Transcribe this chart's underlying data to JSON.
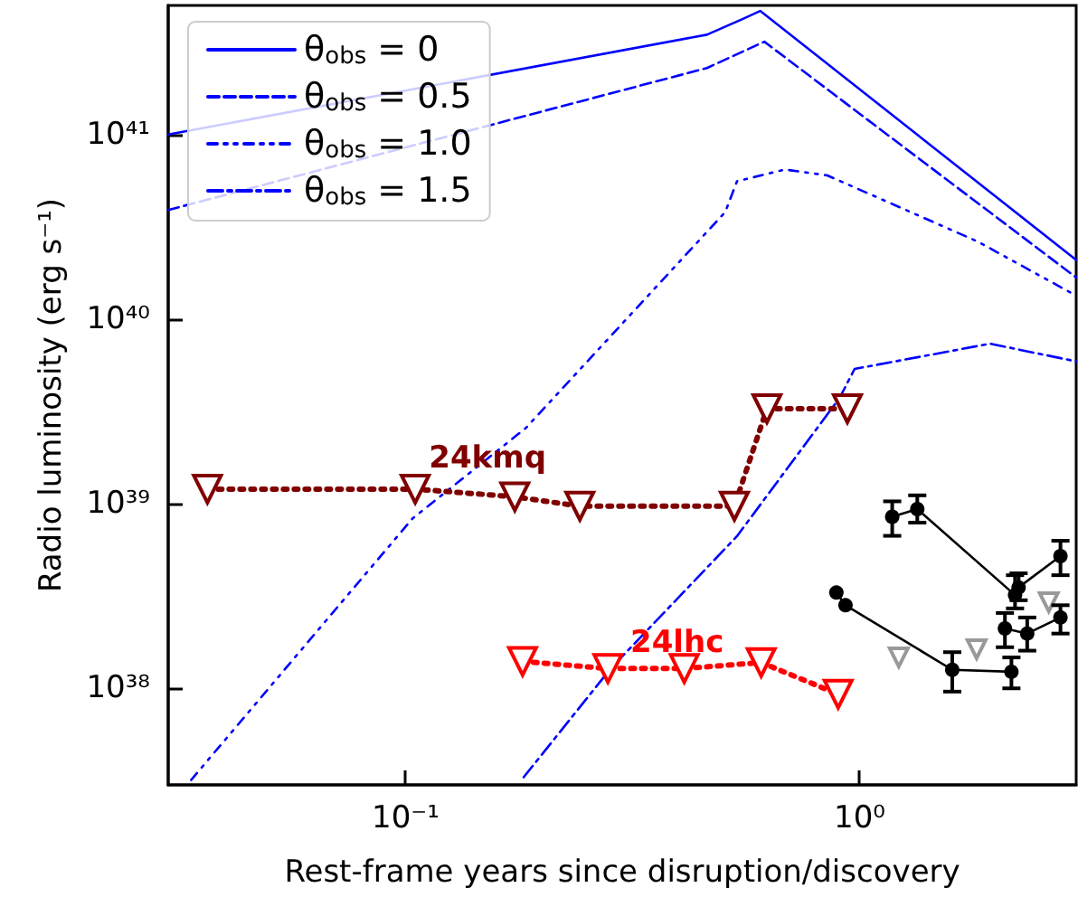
{
  "chart_data": {
    "type": "line",
    "xlabel": "Rest-frame years since disruption/discovery",
    "ylabel": "Radio luminosity (erg s⁻¹)",
    "log": "xy",
    "grid": false,
    "legend": "top left",
    "xlim": [
      0.03,
      3.0
    ],
    "ylim": [
      3e+37,
      5e+41
    ],
    "xticks": [
      {
        "value": 0.1,
        "label": "10⁻¹"
      },
      {
        "value": 1,
        "label": "10⁰"
      }
    ],
    "yticks": [
      {
        "value": 1e+38,
        "label": "10³⁸"
      },
      {
        "value": 1e+39,
        "label": "10³⁹"
      },
      {
        "value": 1e+40,
        "label": "10⁴⁰"
      },
      {
        "value": 1e+41,
        "label": "10⁴¹"
      }
    ],
    "series": [
      {
        "name": "θ$_{obs}$ = 0",
        "color": "#0000ff",
        "line_style": "solid",
        "marker": "none",
        "x": [
          0.03,
          0.461,
          0.555,
          0.604,
          3.0
        ],
        "values": [
          1e+41,
          3.47e+41,
          4.24e+41,
          4.67e+41,
          2.09e+40
        ]
      },
      {
        "name": "θ$_{obs}$ = 0.5",
        "color": "#0000ff",
        "line_style": "dashed",
        "marker": "none",
        "x": [
          0.03,
          0.461,
          0.617,
          3.0
        ],
        "values": [
          3.9e+40,
          2.29e+41,
          3.18e+41,
          1.68e+40
        ]
      },
      {
        "name": "θ$_{obs}$ = 1.0",
        "color": "#0000ff",
        "line_style": "dashdotdot",
        "marker": "none",
        "x": [
          0.0337,
          0.1035,
          0.184,
          0.506,
          0.537,
          0.685,
          0.849,
          1.82,
          3.0
        ],
        "values": [
          3.19e+37,
          8.3e+38,
          2.57e+39,
          3.8e+40,
          5.58e+40,
          6.46e+40,
          6e+40,
          2.63e+40,
          1.34e+40
        ]
      },
      {
        "name": "θ$_{obs}$ = 1.5",
        "color": "#0000ff",
        "line_style": "dashdot",
        "marker": "none",
        "x": [
          0.182,
          0.283,
          0.537,
          0.904,
          0.975,
          1.94,
          3.0
        ],
        "values": [
          3.3e+37,
          1.28e+38,
          6.67e+38,
          3.75e+39,
          5.37e+39,
          7.36e+39,
          5.9e+39
        ]
      },
      {
        "name": "24kmq",
        "color": "#800000",
        "line_style": "dotted",
        "marker": "triangle",
        "x": [
          0.0366,
          0.105,
          0.174,
          0.242,
          0.53,
          0.625,
          0.94
        ],
        "values": [
          1.2e+39,
          1.2e+39,
          1.09e+39,
          9.7e+38,
          9.7e+38,
          3.27e+39,
          3.27e+39
        ]
      },
      {
        "name": "24lhc",
        "color": "#ff0000",
        "line_style": "dotted",
        "marker": "triangle",
        "x": [
          0.181,
          0.279,
          0.411,
          0.607,
          0.897
        ],
        "values": [
          1.4e+38,
          1.28e+38,
          1.28e+38,
          1.38e+38,
          9.3e+37
        ]
      },
      {
        "color": "#000000",
        "line_style": "solid",
        "marker": "circle",
        "x": [
          1.18,
          1.34,
          2.2,
          2.24,
          2.77
        ],
        "values": [
          8.5e+38,
          9.35e+38,
          3.2e+38,
          3.52e+38,
          5.2e+38
        ],
        "errors": [
          [
            6.7e+38,
            1.03e+39
          ],
          [
            7.9e+38,
            1.11e+39
          ],
          [
            2.71e+38,
            4.1e+38
          ],
          [
            3e+38,
            4.2e+38
          ],
          [
            4.1e+38,
            6.3e+38
          ]
        ]
      },
      {
        "color": "#000000",
        "line_style": "solid",
        "marker": "circle",
        "x": [
          0.889,
          0.931,
          1.6,
          2.16
        ],
        "values": [
          3.3e+38,
          2.82e+38,
          1.26e+38,
          1.23e+38
        ],
        "errors": [
          null,
          null,
          [
            9.6e+37,
            1.57e+38
          ],
          [
            1e+38,
            1.47e+38
          ]
        ]
      },
      {
        "color": "#000000",
        "line_style": "solid",
        "marker": "circle",
        "x": [
          2.09,
          2.34,
          2.77
        ],
        "values": [
          2.11e+38,
          1.98e+38,
          2.42e+38
        ],
        "errors": [
          [
            1.67e+38,
            2.56e+38
          ],
          [
            1.6e+38,
            2.42e+38
          ],
          [
            1.98e+38,
            2.82e+38
          ]
        ]
      },
      {
        "type": "scatter",
        "color": "#808080",
        "marker": "triangle",
        "x": [
          1.22,
          1.81,
          2.61
        ],
        "values": [
          1.47e+38,
          1.63e+38,
          2.93e+38
        ]
      }
    ]
  }
}
